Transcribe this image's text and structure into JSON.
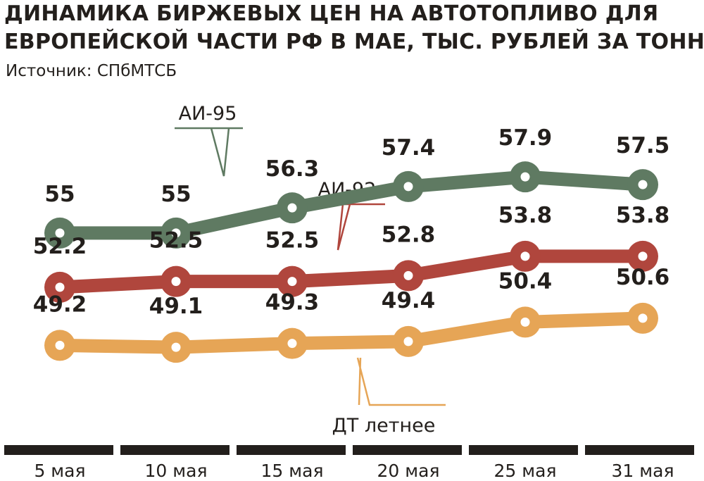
{
  "header": {
    "title_line1": "ДИНАМИКА БИРЖЕВЫХ ЦЕН НА АВТОТОПЛИВО ДЛЯ",
    "title_line2": "ЕВРОПЕЙСКОЙ ЧАСТИ РФ В МАЕ, ТЫС. РУБЛЕЙ ЗА ТОННУ",
    "source": "Источник: СПбМТСБ"
  },
  "chart_data": {
    "type": "line",
    "title": "ДИНАМИКА БИРЖЕВЫХ ЦЕН НА АВТОТОПЛИВО ДЛЯ ЕВРОПЕЙСКОЙ ЧАСТИ РФ В МАЕ, ТЫС. РУБЛЕЙ ЗА ТОННУ",
    "categories": [
      "5 мая",
      "10 мая",
      "15 мая",
      "20 мая",
      "25 мая",
      "31 мая"
    ],
    "series": [
      {
        "name": "АИ-95",
        "color": "#5f7a62",
        "values": [
          55,
          55,
          56.3,
          57.4,
          57.9,
          57.5
        ],
        "labels": [
          "55",
          "55",
          "56.3",
          "57.4",
          "57.9",
          "57.5"
        ]
      },
      {
        "name": "АИ-92",
        "color": "#b0463d",
        "values": [
          52.2,
          52.5,
          52.5,
          52.8,
          53.8,
          53.8
        ],
        "labels": [
          "52.2",
          "52.5",
          "52.5",
          "52.8",
          "53.8",
          "53.8"
        ]
      },
      {
        "name": "ДТ летнее",
        "color": "#e6a556",
        "values": [
          49.2,
          49.1,
          49.3,
          49.4,
          50.4,
          50.6
        ],
        "labels": [
          "49.2",
          "49.1",
          "49.3",
          "49.4",
          "50.4",
          "50.6"
        ]
      }
    ],
    "data_labels": true,
    "grid": false,
    "legend": "callouts"
  }
}
